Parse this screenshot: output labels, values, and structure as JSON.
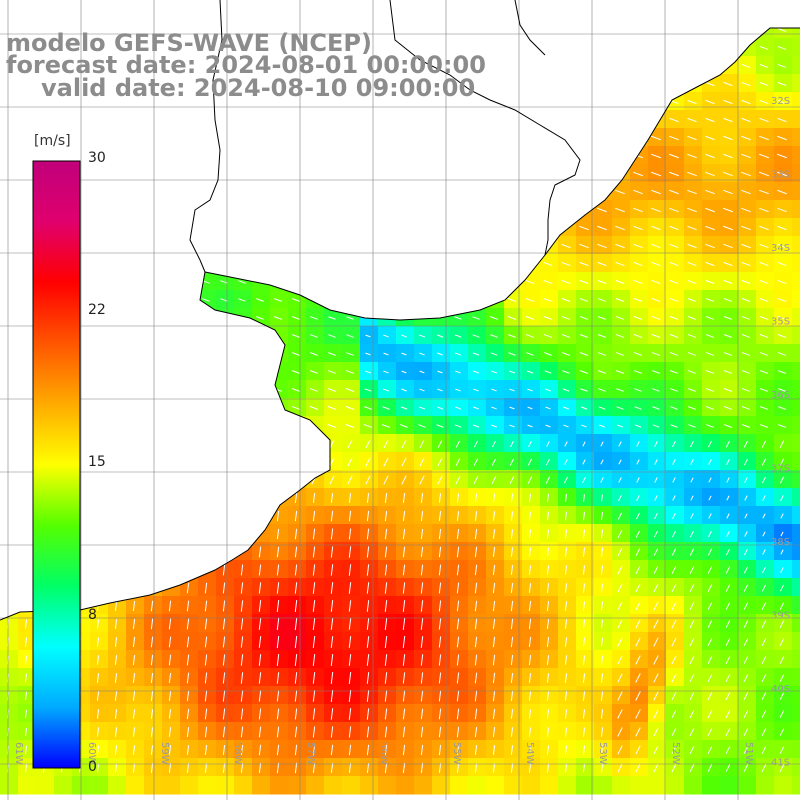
{
  "title": {
    "line1": "modelo GEFS-WAVE (NCEP)",
    "line2": "forecast date: 2024-08-01 00:00:00",
    "line3": "valid date: 2024-08-10 09:00:00"
  },
  "colorbar": {
    "unit": "[m/s]",
    "ticks": [
      "30",
      "22",
      "15",
      "8",
      "0"
    ],
    "tick_values": [
      30,
      22,
      15,
      8,
      0
    ],
    "range": [
      0,
      30
    ],
    "stops": [
      "#0000ff",
      "#00aaff",
      "#00ffff",
      "#00ff66",
      "#55ff00",
      "#ffff00",
      "#ffaa00",
      "#ff5500",
      "#ff0000",
      "#e0006e",
      "#c0007a"
    ]
  },
  "lat_labels": [
    "32S",
    "33S",
    "34S",
    "35S",
    "36S",
    "37S",
    "38S",
    "39S",
    "40S",
    "41S"
  ],
  "lon_labels": [
    "61W",
    "60W",
    "59W",
    "58W",
    "57W",
    "56W",
    "55W",
    "54W",
    "53W",
    "52W",
    "51W"
  ],
  "colors": {
    "land": "#ffffff",
    "coast": "#000000",
    "grid": "#808080",
    "arrow": "#ffffff"
  }
}
